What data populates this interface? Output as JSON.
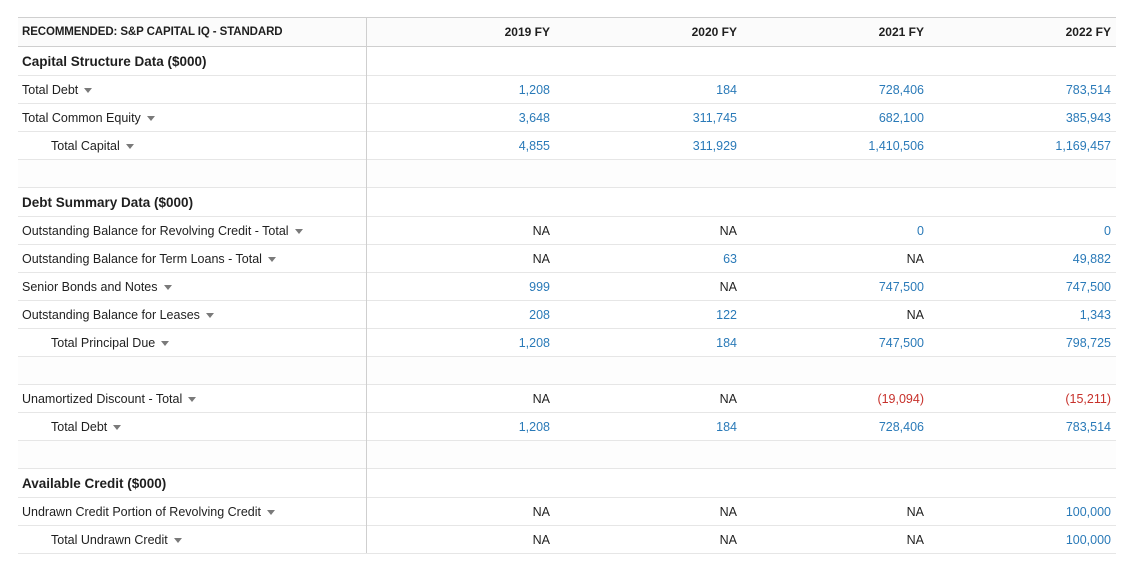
{
  "header": {
    "label": "RECOMMENDED: S&P CAPITAL IQ - STANDARD",
    "years": [
      "2019 FY",
      "2020 FY",
      "2021 FY",
      "2022 FY"
    ]
  },
  "sections": {
    "capital": {
      "title": "Capital Structure Data ($000)",
      "rows": [
        {
          "label": "Total Debt",
          "values": [
            "1,208",
            "184",
            "728,406",
            "783,514"
          ]
        },
        {
          "label": "Total Common Equity",
          "values": [
            "3,648",
            "311,745",
            "682,100",
            "385,943"
          ]
        },
        {
          "label": "Total Capital",
          "values": [
            "4,855",
            "311,929",
            "1,410,506",
            "1,169,457"
          ]
        }
      ]
    },
    "debt": {
      "title": "Debt Summary Data ($000)",
      "rows": [
        {
          "label": "Outstanding Balance for Revolving Credit - Total",
          "values": [
            "NA",
            "NA",
            "0",
            "0"
          ]
        },
        {
          "label": "Outstanding Balance for Term Loans - Total",
          "values": [
            "NA",
            "63",
            "NA",
            "49,882"
          ]
        },
        {
          "label": "Senior Bonds and Notes",
          "values": [
            "999",
            "NA",
            "747,500",
            "747,500"
          ]
        },
        {
          "label": "Outstanding Balance for Leases",
          "values": [
            "208",
            "122",
            "NA",
            "1,343"
          ]
        },
        {
          "label": "Total Principal Due",
          "values": [
            "1,208",
            "184",
            "747,500",
            "798,725"
          ]
        },
        {
          "label": "Unamortized Discount - Total",
          "values": [
            "NA",
            "NA",
            "(19,094)",
            "(15,211)"
          ]
        },
        {
          "label": "Total Debt",
          "values": [
            "1,208",
            "184",
            "728,406",
            "783,514"
          ]
        }
      ]
    },
    "credit": {
      "title": "Available Credit ($000)",
      "rows": [
        {
          "label": "Undrawn Credit Portion of Revolving Credit",
          "values": [
            "NA",
            "NA",
            "NA",
            "100,000"
          ]
        },
        {
          "label": "Total Undrawn Credit",
          "values": [
            "NA",
            "NA",
            "NA",
            "100,000"
          ]
        }
      ]
    }
  },
  "colors": {
    "link": "#2a7ab8",
    "negative": "#c7312b",
    "text": "#1f1f1f",
    "divider": "#cfcfcf"
  },
  "icons": {
    "row_dropdown": "caret-down-icon"
  }
}
